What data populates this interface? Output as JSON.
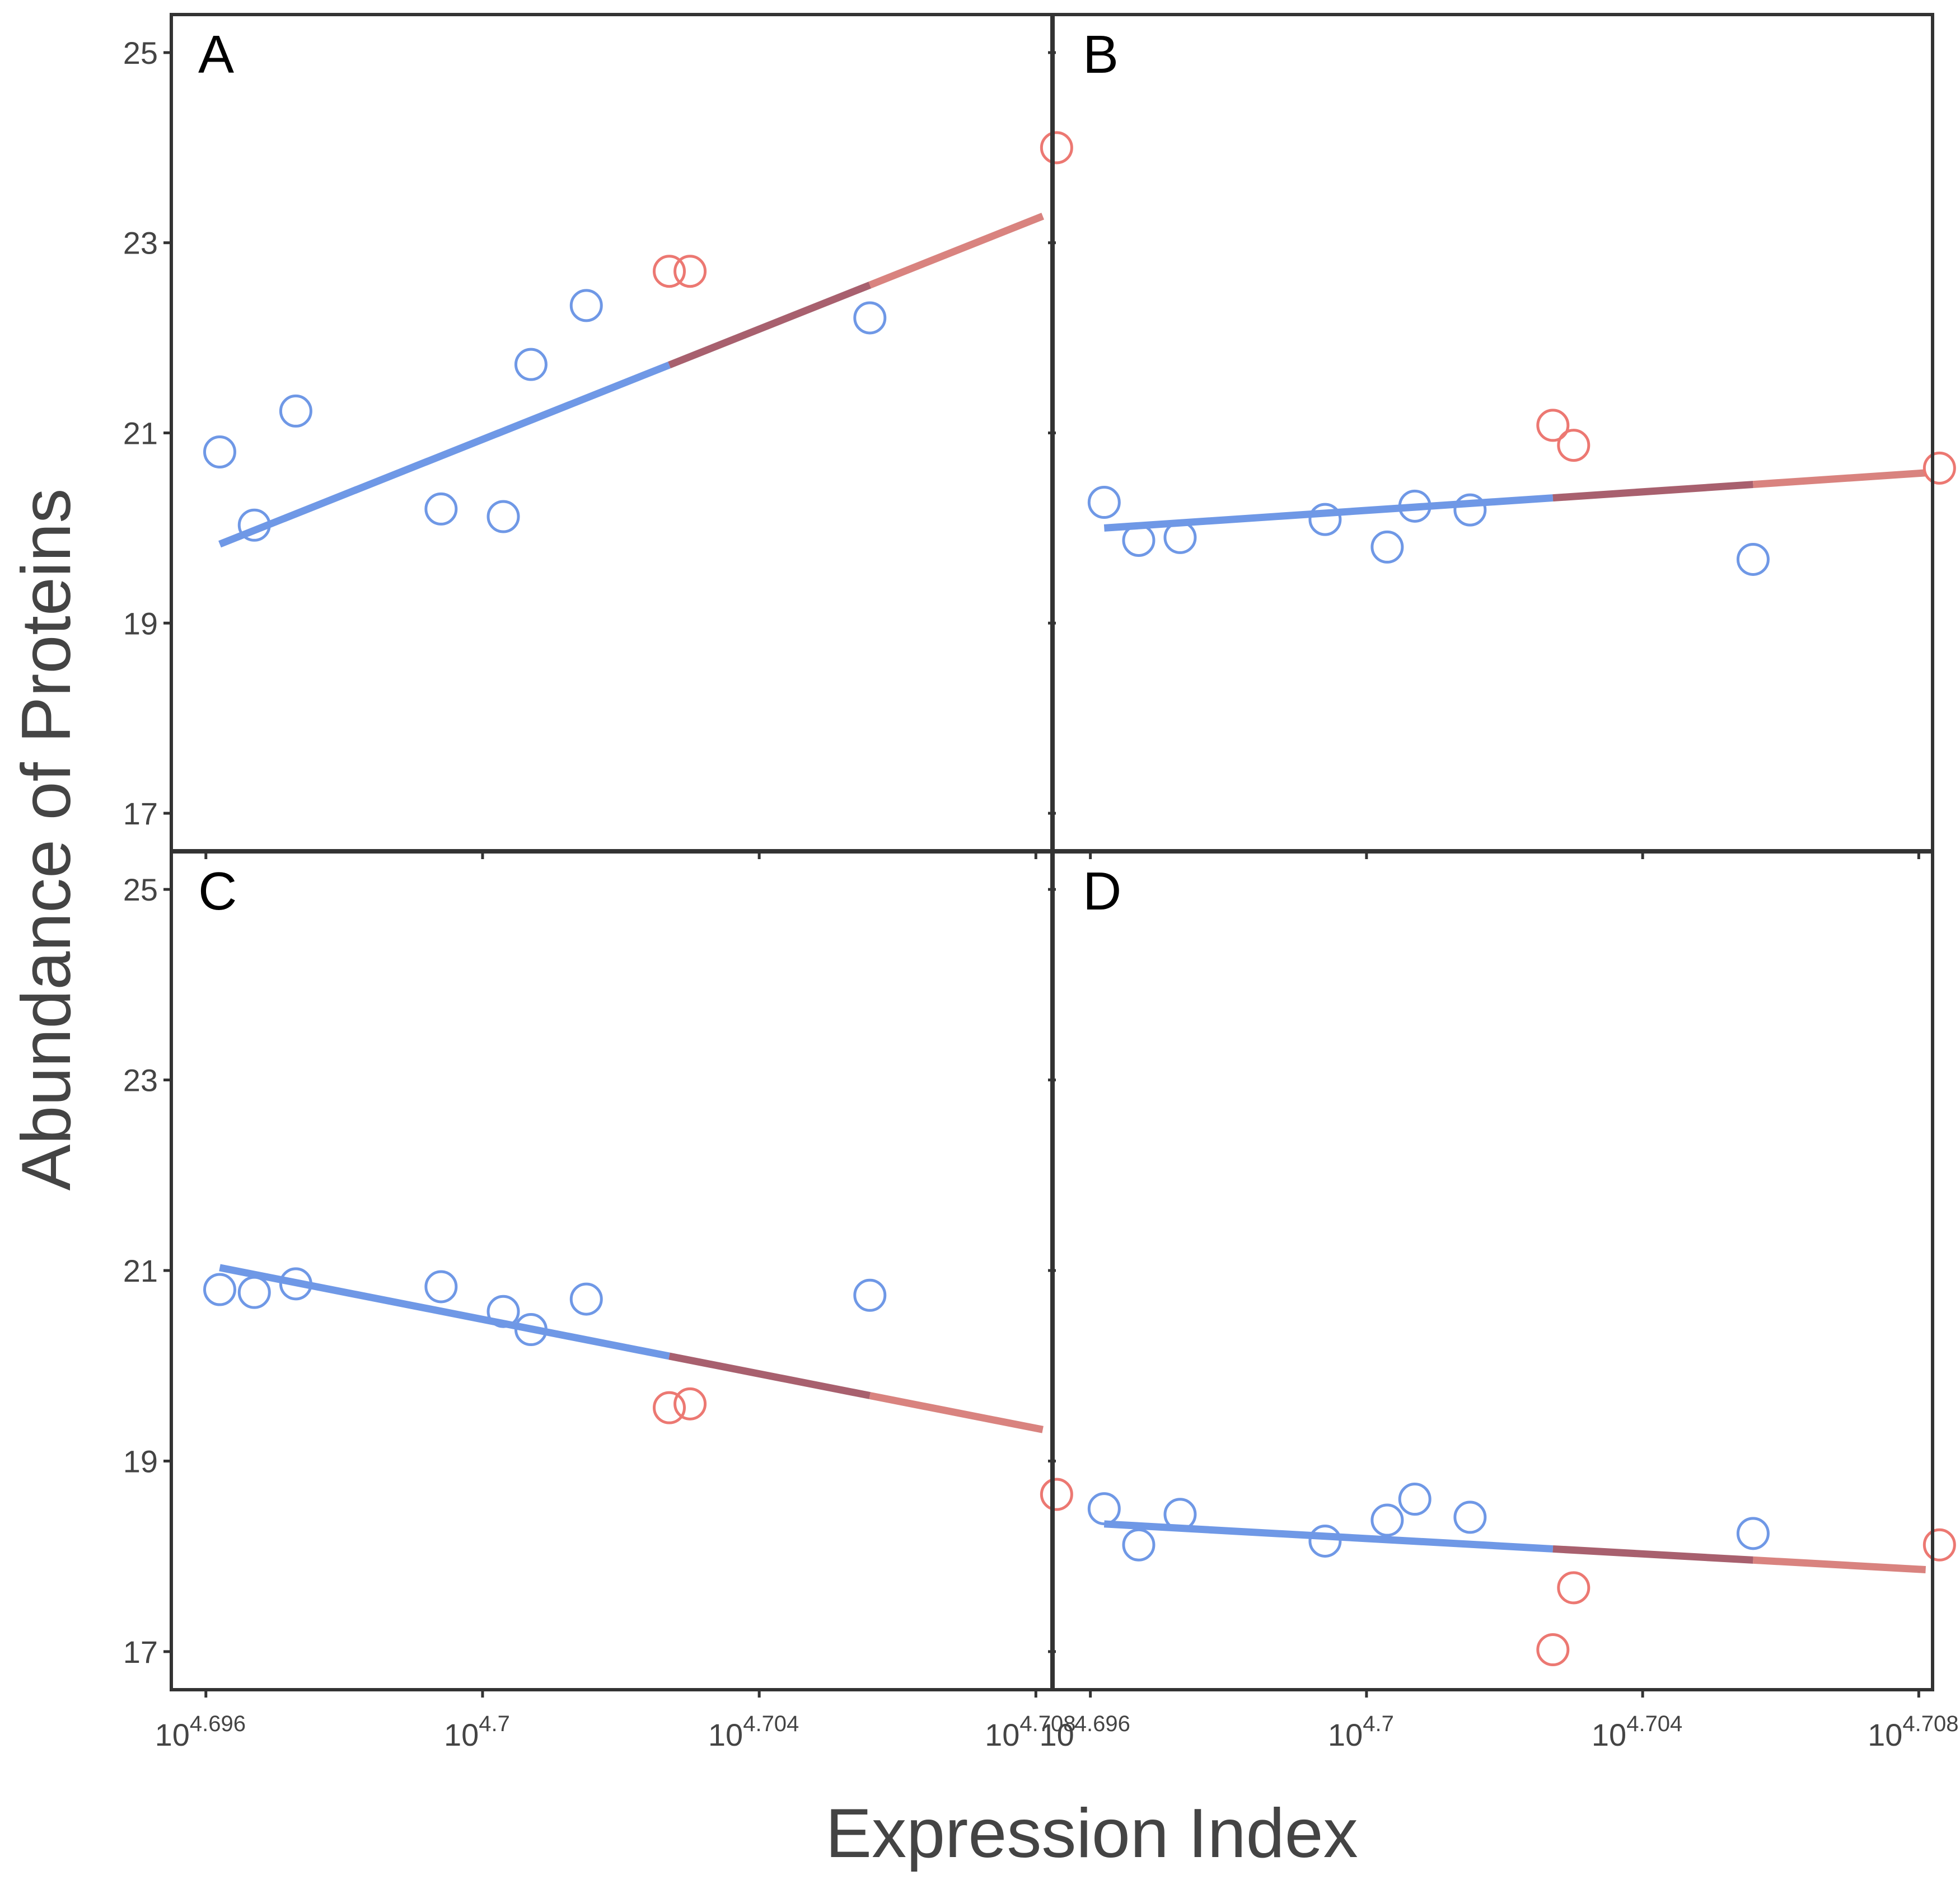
{
  "colors": {
    "blue": "#6f98e6",
    "red": "#ec7872",
    "blue_line": "#6f98e6",
    "mid_line": "#a8606e",
    "red_line": "#d9837f",
    "frame": "#333333"
  },
  "chart_data": {
    "type": "scatter",
    "layout": "2x2 facets, shared x and y axes",
    "xlabel": "Expression Index",
    "ylabel": "Abundance of Proteins",
    "x_scale": "log10",
    "x_exponent_range": [
      4.6955,
      4.7082
    ],
    "ylim": [
      16.6,
      25.4
    ],
    "x_ticks": [
      {
        "base": "10",
        "exp": "4.696",
        "value": 4.696
      },
      {
        "base": "10",
        "exp": "4.7",
        "value": 4.7
      },
      {
        "base": "10",
        "exp": "4.704",
        "value": 4.704
      },
      {
        "base": "10",
        "exp": "4.708",
        "value": 4.708
      }
    ],
    "y_ticks": [
      "17",
      "19",
      "21",
      "23",
      "25"
    ],
    "y_tick_values": [
      17,
      19,
      21,
      23,
      25
    ],
    "grid": false,
    "panels": [
      {
        "label": "A",
        "fit": {
          "x_start": 4.6962,
          "x_end": 4.7081,
          "y_start": 19.83,
          "y_end": 23.28,
          "x_blue_end": 4.7027,
          "x_red_start": 4.7056
        },
        "points": [
          {
            "x": 4.6962,
            "y": 20.8,
            "group": "blue"
          },
          {
            "x": 4.6967,
            "y": 20.03,
            "group": "blue"
          },
          {
            "x": 4.6973,
            "y": 21.23,
            "group": "blue"
          },
          {
            "x": 4.6994,
            "y": 20.2,
            "group": "blue"
          },
          {
            "x": 4.7003,
            "y": 20.12,
            "group": "blue"
          },
          {
            "x": 4.7007,
            "y": 21.72,
            "group": "blue"
          },
          {
            "x": 4.7015,
            "y": 22.34,
            "group": "blue"
          },
          {
            "x": 4.7027,
            "y": 22.7,
            "group": "red"
          },
          {
            "x": 4.703,
            "y": 22.7,
            "group": "red"
          },
          {
            "x": 4.7056,
            "y": 22.21,
            "group": "blue"
          },
          {
            "x": 4.7083,
            "y": 24.0,
            "group": "red"
          }
        ]
      },
      {
        "label": "B",
        "fit": {
          "x_start": 4.6962,
          "x_end": 4.7081,
          "y_start": 20.0,
          "y_end": 20.58,
          "x_blue_end": 4.7027,
          "x_red_start": 4.7056
        },
        "points": [
          {
            "x": 4.6962,
            "y": 20.27,
            "group": "blue"
          },
          {
            "x": 4.6967,
            "y": 19.87,
            "group": "blue"
          },
          {
            "x": 4.6973,
            "y": 19.9,
            "group": "blue"
          },
          {
            "x": 4.6994,
            "y": 20.09,
            "group": "blue"
          },
          {
            "x": 4.7003,
            "y": 19.8,
            "group": "blue"
          },
          {
            "x": 4.7007,
            "y": 20.23,
            "group": "blue"
          },
          {
            "x": 4.7015,
            "y": 20.19,
            "group": "blue"
          },
          {
            "x": 4.7027,
            "y": 21.08,
            "group": "red"
          },
          {
            "x": 4.703,
            "y": 20.87,
            "group": "red"
          },
          {
            "x": 4.7056,
            "y": 19.67,
            "group": "blue"
          },
          {
            "x": 4.7083,
            "y": 20.63,
            "group": "red"
          }
        ]
      },
      {
        "label": "C",
        "fit": {
          "x_start": 4.6962,
          "x_end": 4.7081,
          "y_start": 21.03,
          "y_end": 19.33,
          "x_blue_end": 4.7027,
          "x_red_start": 4.7056
        },
        "points": [
          {
            "x": 4.6962,
            "y": 20.8,
            "group": "blue"
          },
          {
            "x": 4.6967,
            "y": 20.77,
            "group": "blue"
          },
          {
            "x": 4.6973,
            "y": 20.86,
            "group": "blue"
          },
          {
            "x": 4.6994,
            "y": 20.83,
            "group": "blue"
          },
          {
            "x": 4.7003,
            "y": 20.57,
            "group": "blue"
          },
          {
            "x": 4.7007,
            "y": 20.38,
            "group": "blue"
          },
          {
            "x": 4.7015,
            "y": 20.7,
            "group": "blue"
          },
          {
            "x": 4.7027,
            "y": 19.56,
            "group": "red"
          },
          {
            "x": 4.703,
            "y": 19.6,
            "group": "red"
          },
          {
            "x": 4.7056,
            "y": 20.74,
            "group": "blue"
          },
          {
            "x": 4.7083,
            "y": 18.65,
            "group": "red"
          }
        ]
      },
      {
        "label": "D",
        "fit": {
          "x_start": 4.6962,
          "x_end": 4.7081,
          "y_start": 18.34,
          "y_end": 17.86,
          "x_blue_end": 4.7027,
          "x_red_start": 4.7056
        },
        "points": [
          {
            "x": 4.6962,
            "y": 18.5,
            "group": "blue"
          },
          {
            "x": 4.6967,
            "y": 18.12,
            "group": "blue"
          },
          {
            "x": 4.6973,
            "y": 18.44,
            "group": "blue"
          },
          {
            "x": 4.6994,
            "y": 18.16,
            "group": "blue"
          },
          {
            "x": 4.7003,
            "y": 18.38,
            "group": "blue"
          },
          {
            "x": 4.7007,
            "y": 18.6,
            "group": "blue"
          },
          {
            "x": 4.7015,
            "y": 18.41,
            "group": "blue"
          },
          {
            "x": 4.7027,
            "y": 17.02,
            "group": "red"
          },
          {
            "x": 4.703,
            "y": 17.67,
            "group": "red"
          },
          {
            "x": 4.7056,
            "y": 18.24,
            "group": "blue"
          },
          {
            "x": 4.7083,
            "y": 18.12,
            "group": "red"
          }
        ]
      }
    ]
  }
}
